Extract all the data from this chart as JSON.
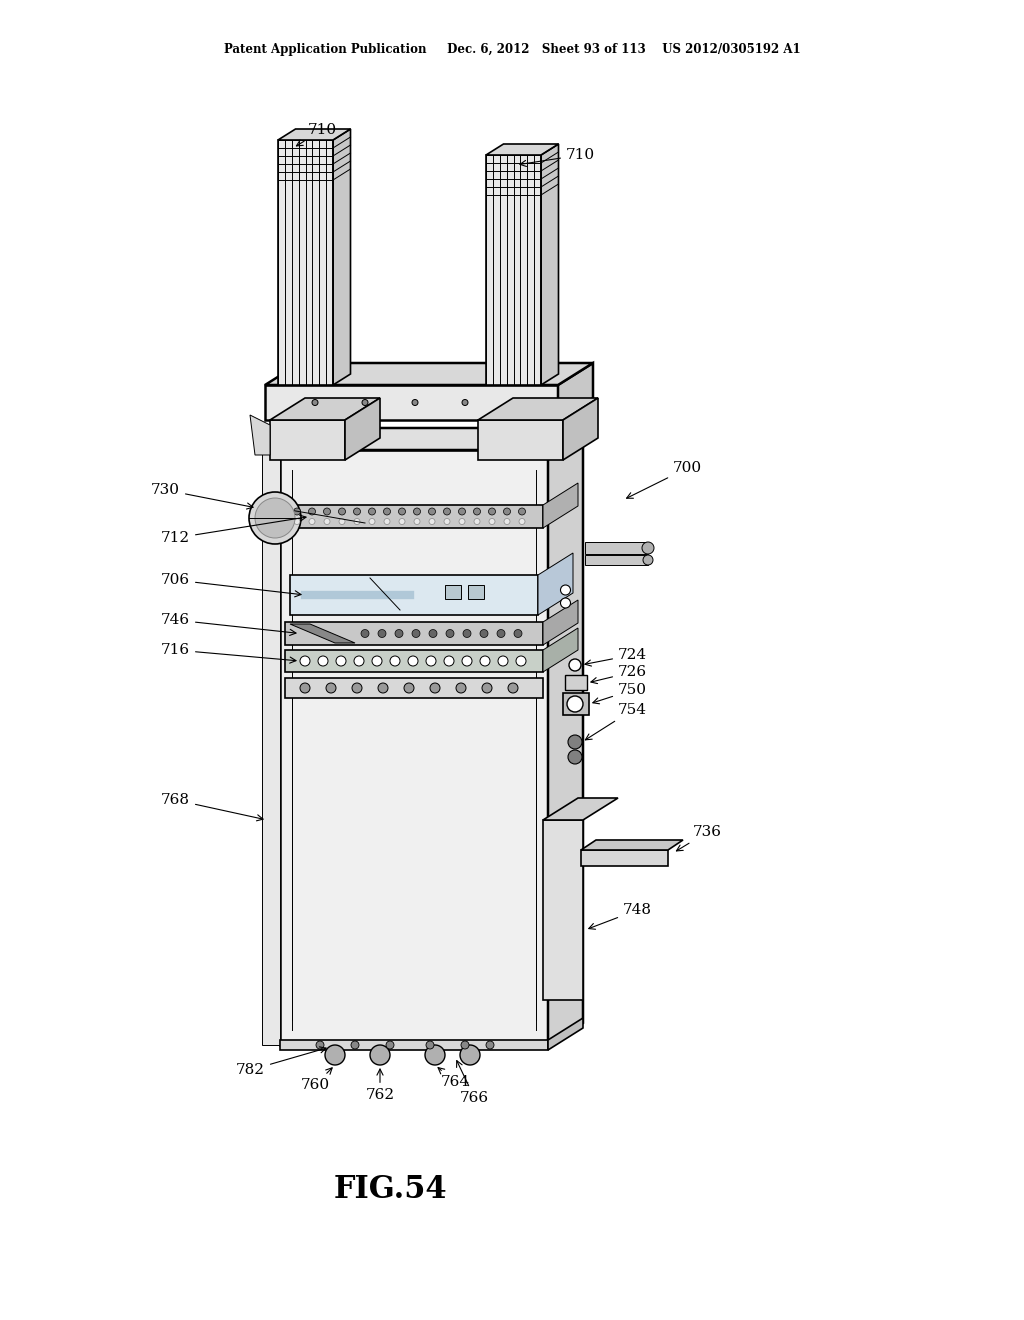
{
  "bg_color": "#ffffff",
  "line_color": "#000000",
  "header_text": "Patent Application Publication     Dec. 6, 2012   Sheet 93 of 113    US 2012/0305192 A1",
  "fig_label": "FIG.54",
  "lw_main": 1.2,
  "lw_thin": 0.7,
  "lw_thick": 1.8
}
